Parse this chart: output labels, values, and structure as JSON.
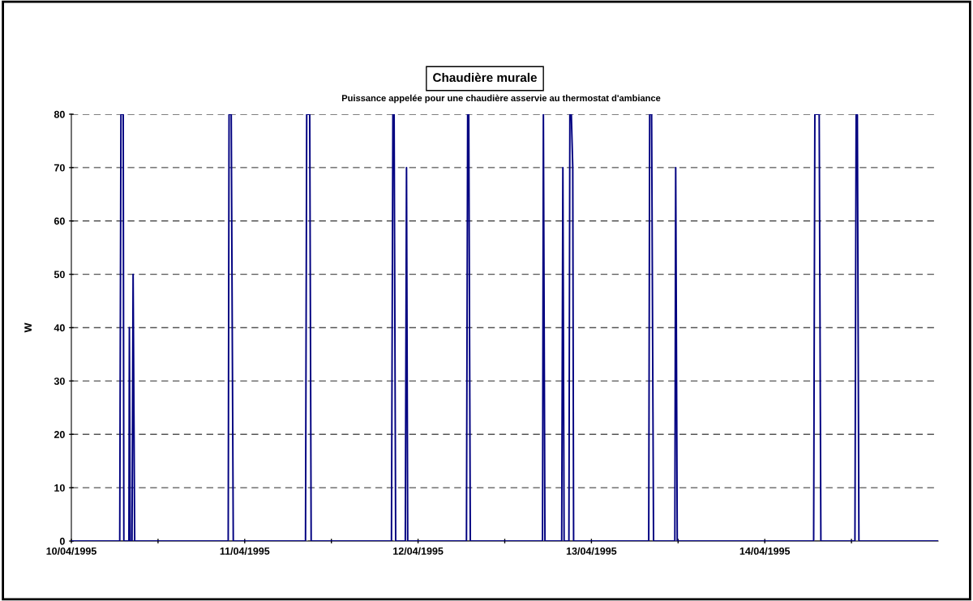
{
  "chart_data": {
    "type": "line",
    "title": "Chaudière murale",
    "subtitle": "Puissance appelée pour une chaudière asservie au thermostat d'ambiance",
    "ylabel": "W",
    "x": [
      "1995-04-10T00:00",
      "1995-04-10T06:42",
      "1995-04-10T06:52",
      "1995-04-10T07:11",
      "1995-04-10T07:16",
      "1995-04-10T07:58",
      "1995-04-10T08:02",
      "1995-04-10T08:09",
      "1995-04-10T08:24",
      "1995-04-10T08:33",
      "1995-04-10T08:46",
      "1995-04-10T21:43",
      "1995-04-10T21:50",
      "1995-04-10T22:08",
      "1995-04-10T22:25",
      "1995-04-11T08:25",
      "1995-04-11T08:35",
      "1995-04-11T09:00",
      "1995-04-11T09:12",
      "1995-04-11T20:19",
      "1995-04-11T20:31",
      "1995-04-11T20:41",
      "1995-04-11T20:54",
      "1995-04-11T22:14",
      "1995-04-11T22:24",
      "1995-04-11T22:34",
      "1995-04-12T06:42",
      "1995-04-12T06:52",
      "1995-04-12T07:01",
      "1995-04-12T07:14",
      "1995-04-12T17:14",
      "1995-04-12T17:21",
      "1995-04-12T17:34",
      "1995-04-12T19:53",
      "1995-04-12T20:03",
      "1995-04-12T20:13",
      "1995-04-12T20:53",
      "1995-04-12T21:01",
      "1995-04-12T21:13",
      "1995-04-12T21:25",
      "1995-04-12T21:32",
      "1995-04-13T07:56",
      "1995-04-13T08:04",
      "1995-04-13T08:20",
      "1995-04-13T08:36",
      "1995-04-13T11:33",
      "1995-04-13T11:40",
      "1995-04-13T11:53",
      "1995-04-14T06:46",
      "1995-04-14T06:56",
      "1995-04-14T07:32",
      "1995-04-14T07:46",
      "1995-04-14T12:29",
      "1995-04-14T12:39",
      "1995-04-14T12:49",
      "1995-04-14T13:02",
      "1995-04-15T00:00"
    ],
    "series": [
      {
        "color": "#000080",
        "values": [
          0,
          0,
          80,
          80,
          0,
          0,
          40,
          0,
          0,
          50,
          0,
          0,
          80,
          80,
          0,
          0,
          80,
          80,
          0,
          0,
          80,
          80,
          0,
          0,
          70,
          0,
          0,
          80,
          80,
          0,
          0,
          80,
          0,
          0,
          70,
          0,
          0,
          80,
          80,
          70,
          0,
          0,
          80,
          80,
          0,
          0,
          70,
          0,
          0,
          80,
          80,
          0,
          0,
          80,
          80,
          0,
          0
        ]
      }
    ],
    "xlim": [
      "1995-04-10",
      "1995-04-15"
    ],
    "xticks": [
      {
        "value": "1995-04-10",
        "label": "10/04/1995"
      },
      {
        "value": "1995-04-10T12:00",
        "label": null
      },
      {
        "value": "1995-04-11",
        "label": "11/04/1995"
      },
      {
        "value": "1995-04-11T12:00",
        "label": null
      },
      {
        "value": "1995-04-12",
        "label": "12/04/1995"
      },
      {
        "value": "1995-04-12T12:00",
        "label": null
      },
      {
        "value": "1995-04-13",
        "label": "13/04/1995"
      },
      {
        "value": "1995-04-13T12:00",
        "label": null
      },
      {
        "value": "1995-04-14",
        "label": "14/04/1995"
      },
      {
        "value": "1995-04-14T12:00",
        "label": null
      }
    ],
    "ylim": [
      0,
      80
    ],
    "yticks": [
      0,
      10,
      20,
      30,
      40,
      50,
      60,
      70,
      80
    ],
    "grid": "y",
    "marker": "none",
    "line_style": "solid"
  }
}
